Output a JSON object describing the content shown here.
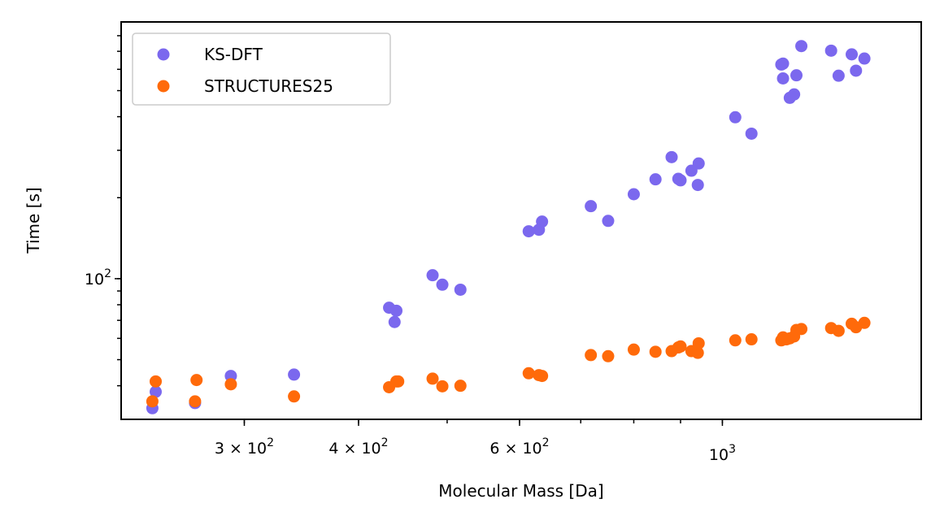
{
  "chart_data": {
    "type": "scatter",
    "xlabel": "Molecular Mass [Da]",
    "ylabel": "Time [s]",
    "xscale": "log",
    "yscale": "log",
    "xlim": [
      220,
      1650
    ],
    "ylim": [
      30,
      900
    ],
    "grid": false,
    "legend_position": "top-left",
    "x_ticks": [
      {
        "value": 300,
        "mantissa": "3",
        "exp": "2"
      },
      {
        "value": 400,
        "mantissa": "4",
        "exp": "2"
      },
      {
        "value": 600,
        "mantissa": "6",
        "exp": "2"
      },
      {
        "value": 1000,
        "mantissa": "",
        "exp": "3"
      }
    ],
    "y_ticks": [
      {
        "value": 100,
        "mantissa": "",
        "exp": "2"
      }
    ],
    "series": [
      {
        "name": "KS-DFT",
        "color": "#7b68ee",
        "points": [
          [
            238,
            33.0
          ],
          [
            240,
            38.0
          ],
          [
            265,
            34.5
          ],
          [
            290,
            43.5
          ],
          [
            340,
            44.0
          ],
          [
            432,
            78
          ],
          [
            438,
            69
          ],
          [
            440,
            76
          ],
          [
            482,
            103
          ],
          [
            494,
            95
          ],
          [
            517,
            91
          ],
          [
            614,
            150
          ],
          [
            630,
            152
          ],
          [
            635,
            163
          ],
          [
            718,
            186
          ],
          [
            750,
            164
          ],
          [
            800,
            206
          ],
          [
            845,
            234
          ],
          [
            880,
            283
          ],
          [
            895,
            235
          ],
          [
            900,
            232
          ],
          [
            925,
            252
          ],
          [
            940,
            223
          ],
          [
            942,
            268
          ],
          [
            1033,
            398
          ],
          [
            1076,
            346
          ],
          [
            1160,
            625
          ],
          [
            1165,
            630
          ],
          [
            1165,
            555
          ],
          [
            1185,
            470
          ],
          [
            1198,
            484
          ],
          [
            1205,
            570
          ],
          [
            1220,
            732
          ],
          [
            1315,
            704
          ],
          [
            1340,
            568
          ],
          [
            1385,
            682
          ],
          [
            1400,
            593
          ],
          [
            1430,
            658
          ]
        ]
      },
      {
        "name": "STRUCTURES25",
        "color": "#ff6a0a",
        "points": [
          [
            238,
            35.0
          ],
          [
            240,
            41.5
          ],
          [
            265,
            35.0
          ],
          [
            266,
            42.0
          ],
          [
            290,
            40.5
          ],
          [
            340,
            36.5
          ],
          [
            432,
            39.5
          ],
          [
            440,
            41.5
          ],
          [
            442,
            41.5
          ],
          [
            482,
            42.5
          ],
          [
            494,
            39.8
          ],
          [
            517,
            40.0
          ],
          [
            614,
            44.5
          ],
          [
            630,
            43.8
          ],
          [
            635,
            43.5
          ],
          [
            718,
            52.0
          ],
          [
            750,
            51.5
          ],
          [
            800,
            54.5
          ],
          [
            845,
            53.5
          ],
          [
            880,
            53.8
          ],
          [
            895,
            55.5
          ],
          [
            900,
            56.0
          ],
          [
            925,
            53.8
          ],
          [
            940,
            53.0
          ],
          [
            942,
            57.5
          ],
          [
            1033,
            59.0
          ],
          [
            1076,
            59.5
          ],
          [
            1160,
            59.0
          ],
          [
            1165,
            60.5
          ],
          [
            1175,
            59.5
          ],
          [
            1185,
            60.0
          ],
          [
            1198,
            61.0
          ],
          [
            1205,
            64.5
          ],
          [
            1220,
            65.0
          ],
          [
            1315,
            65.5
          ],
          [
            1340,
            64.0
          ],
          [
            1385,
            68.0
          ],
          [
            1400,
            66.0
          ],
          [
            1430,
            68.5
          ]
        ]
      }
    ]
  }
}
